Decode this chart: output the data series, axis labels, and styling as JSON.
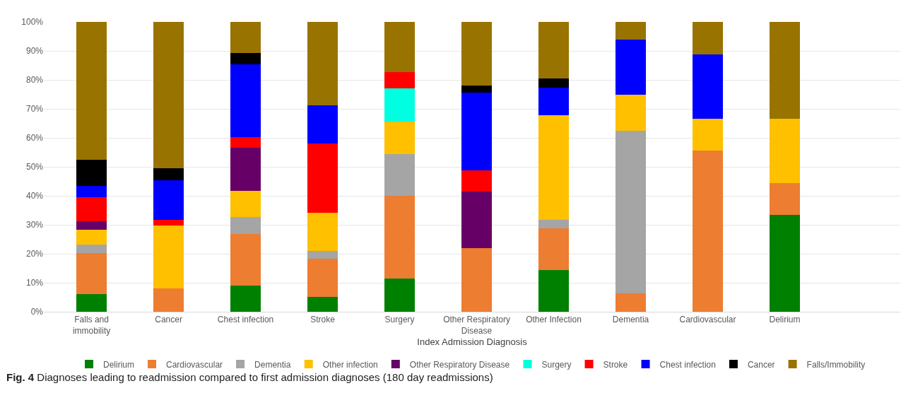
{
  "chart_data": {
    "type": "bar",
    "stacked": true,
    "xlabel": "Index Admission Diagnosis",
    "categories": [
      "Falls and immobility",
      "Cancer",
      "Chest infection",
      "Stroke",
      "Surgery",
      "Other Respiratory Disease",
      "Other Infection",
      "Dementia",
      "Cardiovascular",
      "Delirium"
    ],
    "series": [
      {
        "name": "Delirium",
        "color": "#008000",
        "values": [
          6.1,
          0,
          9.1,
          5.2,
          11.4,
          0,
          14.3,
          0,
          0,
          33.3
        ]
      },
      {
        "name": "Cardiovascular",
        "color": "#ed7d31",
        "values": [
          14.1,
          8.0,
          17.8,
          13.1,
          28.6,
          22.0,
          14.4,
          6.3,
          55.6,
          11.1
        ]
      },
      {
        "name": "Dementia",
        "color": "#a5a5a5",
        "values": [
          2.9,
          0,
          5.8,
          2.6,
          14.3,
          0,
          3.1,
          56.2,
          0,
          0
        ]
      },
      {
        "name": "Other infection",
        "color": "#ffc000",
        "values": [
          5.2,
          21.8,
          9.0,
          13.3,
          11.4,
          0,
          35.9,
          12.5,
          11.1,
          22.2
        ]
      },
      {
        "name": "Other Respiratory Disease",
        "color": "#660066",
        "values": [
          3.0,
          0,
          14.9,
          0,
          0,
          19.5,
          0,
          0,
          0,
          0
        ]
      },
      {
        "name": "Surgery",
        "color": "#00ffe0",
        "values": [
          0,
          0,
          0,
          0,
          11.4,
          0,
          0,
          0,
          0,
          0
        ]
      },
      {
        "name": "Stroke",
        "color": "#ff0000",
        "values": [
          8.2,
          1.9,
          3.6,
          23.8,
          5.7,
          7.3,
          0,
          0,
          0,
          0
        ]
      },
      {
        "name": "Chest infection",
        "color": "#0000ff",
        "values": [
          3.8,
          13.7,
          25.2,
          13.1,
          0,
          26.8,
          9.7,
          18.8,
          22.2,
          0
        ]
      },
      {
        "name": "Cancer",
        "color": "#000000",
        "values": [
          9.2,
          4.0,
          3.8,
          0,
          0,
          2.4,
          3.1,
          0,
          0,
          0
        ]
      },
      {
        "name": "Falls/Immobility",
        "color": "#997300",
        "values": [
          47.5,
          50.6,
          10.8,
          28.9,
          17.2,
          22.0,
          19.5,
          6.2,
          11.1,
          33.3
        ]
      }
    ],
    "ylim": [
      0,
      100
    ],
    "yticks": [
      {
        "value": 0,
        "label": "0%"
      },
      {
        "value": 10,
        "label": "10%"
      },
      {
        "value": 20,
        "label": "20%"
      },
      {
        "value": 30,
        "label": "30%"
      },
      {
        "value": 40,
        "label": "40%"
      },
      {
        "value": 50,
        "label": "50%"
      },
      {
        "value": 60,
        "label": "60%"
      },
      {
        "value": 70,
        "label": "70%"
      },
      {
        "value": 80,
        "label": "80%"
      },
      {
        "value": 90,
        "label": "90%"
      },
      {
        "value": 100,
        "label": "100%"
      }
    ],
    "grid": "y",
    "legend": "bottom",
    "annotations": [
      "Fig. 4 Diagnoses leading to readmission compared to first admission diagnoses (180 day readmissions)"
    ]
  }
}
